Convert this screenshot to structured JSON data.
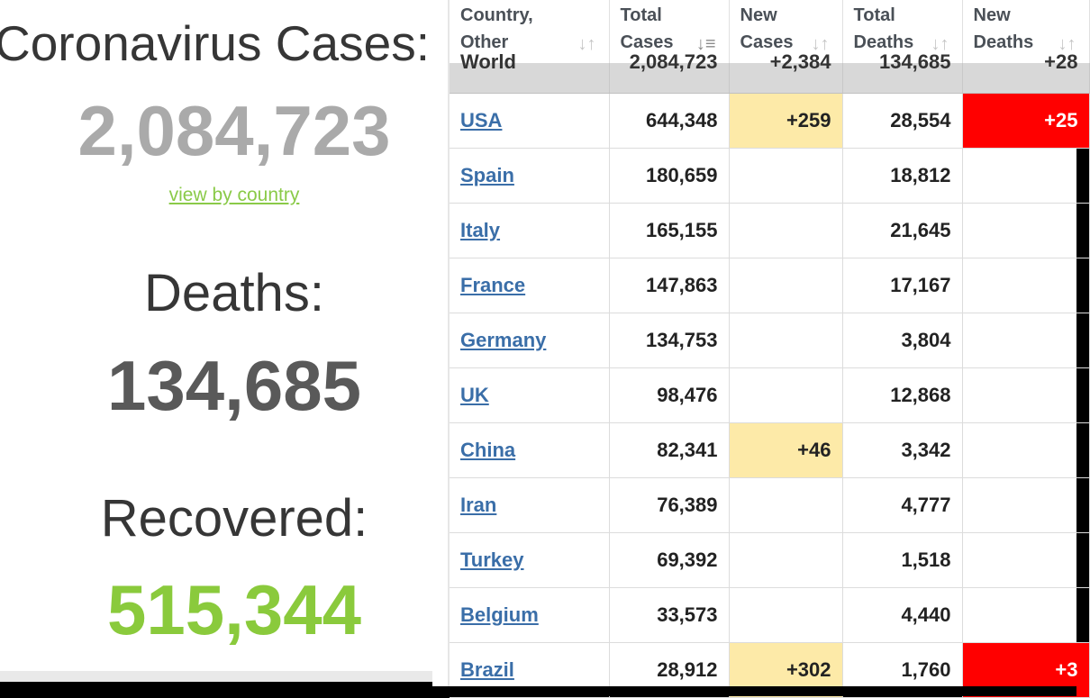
{
  "summary": {
    "title": "Coronavirus Cases:",
    "cases": "2,084,723",
    "view_link": "view by country",
    "deaths_label": "Deaths:",
    "deaths": "134,685",
    "recovered_label": "Recovered:",
    "recovered": "515,344"
  },
  "table": {
    "headers": [
      {
        "line1": "Country,",
        "line2": "Other"
      },
      {
        "line1": "Total",
        "line2": "Cases"
      },
      {
        "line1": "New",
        "line2": "Cases"
      },
      {
        "line1": "Total",
        "line2": "Deaths"
      },
      {
        "line1": "New",
        "line2": "Deaths"
      }
    ],
    "sort_icons": [
      "sort-icon",
      "sort-desc-icon",
      "sort-icon",
      "sort-icon",
      "sort-icon"
    ],
    "world_row": {
      "country": "World",
      "total_cases": "2,084,723",
      "new_cases": "+2,384",
      "total_deaths": "134,685",
      "new_deaths": "+28"
    },
    "rows": [
      {
        "country": "USA",
        "total_cases": "644,348",
        "new_cases": "+259",
        "total_deaths": "28,554",
        "new_deaths": "+25"
      },
      {
        "country": "Spain",
        "total_cases": "180,659",
        "new_cases": "",
        "total_deaths": "18,812",
        "new_deaths": ""
      },
      {
        "country": "Italy",
        "total_cases": "165,155",
        "new_cases": "",
        "total_deaths": "21,645",
        "new_deaths": ""
      },
      {
        "country": "France",
        "total_cases": "147,863",
        "new_cases": "",
        "total_deaths": "17,167",
        "new_deaths": ""
      },
      {
        "country": "Germany",
        "total_cases": "134,753",
        "new_cases": "",
        "total_deaths": "3,804",
        "new_deaths": ""
      },
      {
        "country": "UK",
        "total_cases": "98,476",
        "new_cases": "",
        "total_deaths": "12,868",
        "new_deaths": ""
      },
      {
        "country": "China",
        "total_cases": "82,341",
        "new_cases": "+46",
        "total_deaths": "3,342",
        "new_deaths": ""
      },
      {
        "country": "Iran",
        "total_cases": "76,389",
        "new_cases": "",
        "total_deaths": "4,777",
        "new_deaths": ""
      },
      {
        "country": "Turkey",
        "total_cases": "69,392",
        "new_cases": "",
        "total_deaths": "1,518",
        "new_deaths": ""
      },
      {
        "country": "Belgium",
        "total_cases": "33,573",
        "new_cases": "",
        "total_deaths": "4,440",
        "new_deaths": ""
      },
      {
        "country": "Brazil",
        "total_cases": "28,912",
        "new_cases": "+302",
        "total_deaths": "1,760",
        "new_deaths": "+3"
      }
    ]
  },
  "colors": {
    "recovered_green": "#8aca3c",
    "link_green": "#8aca48",
    "new_cases_highlight": "#fdeaa8",
    "new_deaths_highlight": "#ff0000",
    "country_link": "#3a6ea8"
  }
}
